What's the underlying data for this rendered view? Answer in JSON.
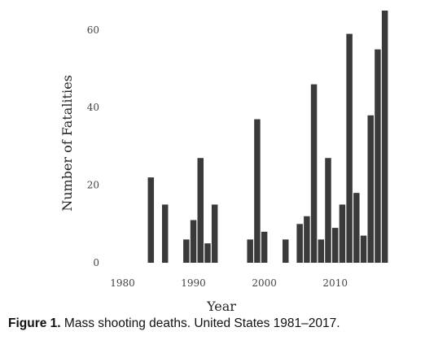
{
  "chart_data": {
    "type": "bar",
    "xlabel": "Year",
    "ylabel": "Number of Fatalities",
    "xlim": [
      1976.5,
      2017.5
    ],
    "ylim": [
      0,
      65
    ],
    "xticks": [
      1980,
      1990,
      2000,
      2010
    ],
    "yticks": [
      0,
      20,
      40,
      60
    ],
    "grid": false,
    "bar_color": "#3a3a3a",
    "data": [
      {
        "year": 1984,
        "value": 22
      },
      {
        "year": 1986,
        "value": 15
      },
      {
        "year": 1989,
        "value": 6
      },
      {
        "year": 1990,
        "value": 11
      },
      {
        "year": 1991,
        "value": 27
      },
      {
        "year": 1992,
        "value": 5
      },
      {
        "year": 1993,
        "value": 15
      },
      {
        "year": 1998,
        "value": 6
      },
      {
        "year": 1999,
        "value": 37
      },
      {
        "year": 2000,
        "value": 8
      },
      {
        "year": 2003,
        "value": 6
      },
      {
        "year": 2005,
        "value": 10
      },
      {
        "year": 2006,
        "value": 12
      },
      {
        "year": 2007,
        "value": 46
      },
      {
        "year": 2008,
        "value": 6
      },
      {
        "year": 2009,
        "value": 27
      },
      {
        "year": 2010,
        "value": 9
      },
      {
        "year": 2011,
        "value": 15
      },
      {
        "year": 2012,
        "value": 59
      },
      {
        "year": 2013,
        "value": 18
      },
      {
        "year": 2014,
        "value": 7
      },
      {
        "year": 2015,
        "value": 38
      },
      {
        "year": 2016,
        "value": 55
      },
      {
        "year": 2017,
        "value": 65
      }
    ]
  },
  "caption": {
    "label": "Figure 1.",
    "text": "Mass shooting deaths. United States 1981–2017."
  }
}
